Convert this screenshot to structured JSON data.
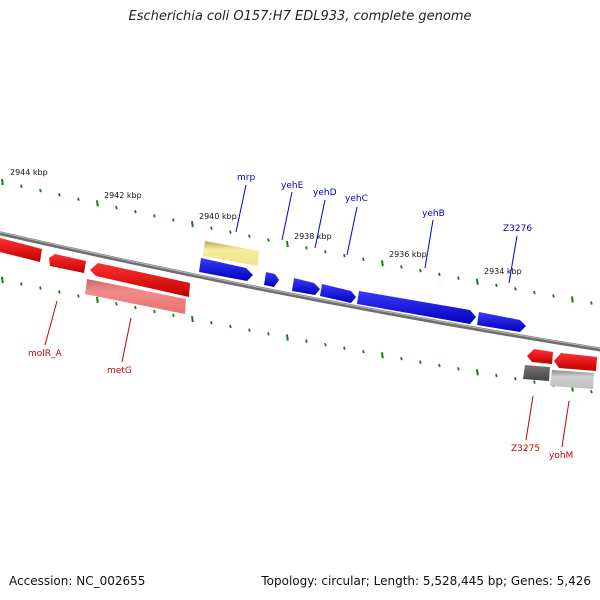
{
  "title": "Escherichia coli O157:H7 EDL933, complete genome",
  "footer": {
    "accession": "Accession: NC_002655",
    "summary": "Topology: circular; Length: 5,528,445 bp; Genes: 5,426"
  },
  "colors": {
    "forward_strand": "#0000ee",
    "reverse_strand": "#ee0000",
    "tick": "#1a7a1a",
    "backbone": "#888888"
  },
  "scale_ticks": [
    "2944 kbp",
    "2942 kbp",
    "2940 kbp",
    "2938 kbp",
    "2936 kbp",
    "2934 kbp"
  ],
  "genes_forward": [
    {
      "label": "mrp"
    },
    {
      "label": "yehE"
    },
    {
      "label": "yehD"
    },
    {
      "label": "yehC"
    },
    {
      "label": "yehB"
    },
    {
      "label": "Z3276"
    }
  ],
  "genes_reverse": [
    {
      "label": "molR_A"
    },
    {
      "label": "metG"
    },
    {
      "label": "Z3275"
    },
    {
      "label": "yohM"
    }
  ]
}
